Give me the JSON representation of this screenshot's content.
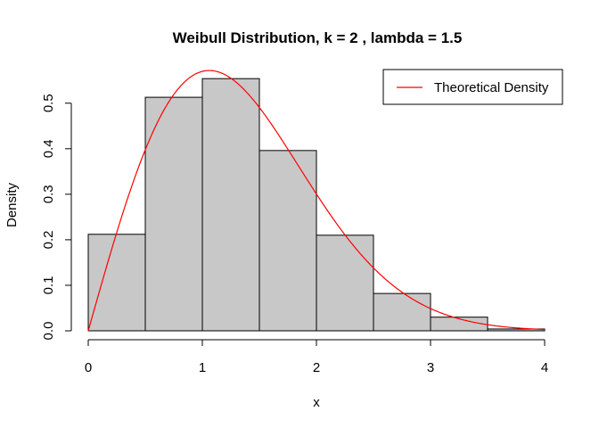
{
  "chart_data": {
    "type": "bar",
    "title": "Weibull Distribution, k = 2 , lambda = 1.5",
    "xlabel": "x",
    "ylabel": "Density",
    "bins": [
      [
        0.0,
        0.5
      ],
      [
        0.5,
        1.0
      ],
      [
        1.0,
        1.5
      ],
      [
        1.5,
        2.0
      ],
      [
        2.0,
        2.5
      ],
      [
        2.5,
        3.0
      ],
      [
        3.0,
        3.5
      ],
      [
        3.5,
        4.0
      ]
    ],
    "values": [
      0.212,
      0.513,
      0.554,
      0.396,
      0.21,
      0.082,
      0.03,
      0.004
    ],
    "series": [
      {
        "name": "Theoretical Density",
        "type": "line",
        "color": "#ff0000",
        "x": [
          0.0,
          0.25,
          0.5,
          0.75,
          1.0,
          1.25,
          1.5,
          1.75,
          2.0,
          2.25,
          2.5,
          2.75,
          3.0,
          3.25,
          3.5,
          3.75,
          4.0
        ],
        "values": [
          0.0,
          0.215,
          0.398,
          0.519,
          0.569,
          0.559,
          0.491,
          0.4,
          0.301,
          0.211,
          0.139,
          0.085,
          0.049,
          0.026,
          0.013,
          0.006,
          0.003
        ]
      }
    ],
    "xlim": [
      0,
      4
    ],
    "ylim": [
      0,
      0.57
    ],
    "xticks": [
      0,
      1,
      2,
      3,
      4
    ],
    "yticks": [
      0.0,
      0.1,
      0.2,
      0.3,
      0.4,
      0.5
    ],
    "xtick_labels": [
      "0",
      "1",
      "2",
      "3",
      "4"
    ],
    "ytick_labels": [
      "0.0",
      "0.1",
      "0.2",
      "0.3",
      "0.4",
      "0.5"
    ],
    "legend": {
      "placement": "top-right",
      "entries": [
        "Theoretical Density"
      ]
    },
    "grid": false,
    "colors": {
      "bar_fill": "#c8c8c8",
      "bar_stroke": "#000000",
      "line": "#ff0000"
    }
  }
}
